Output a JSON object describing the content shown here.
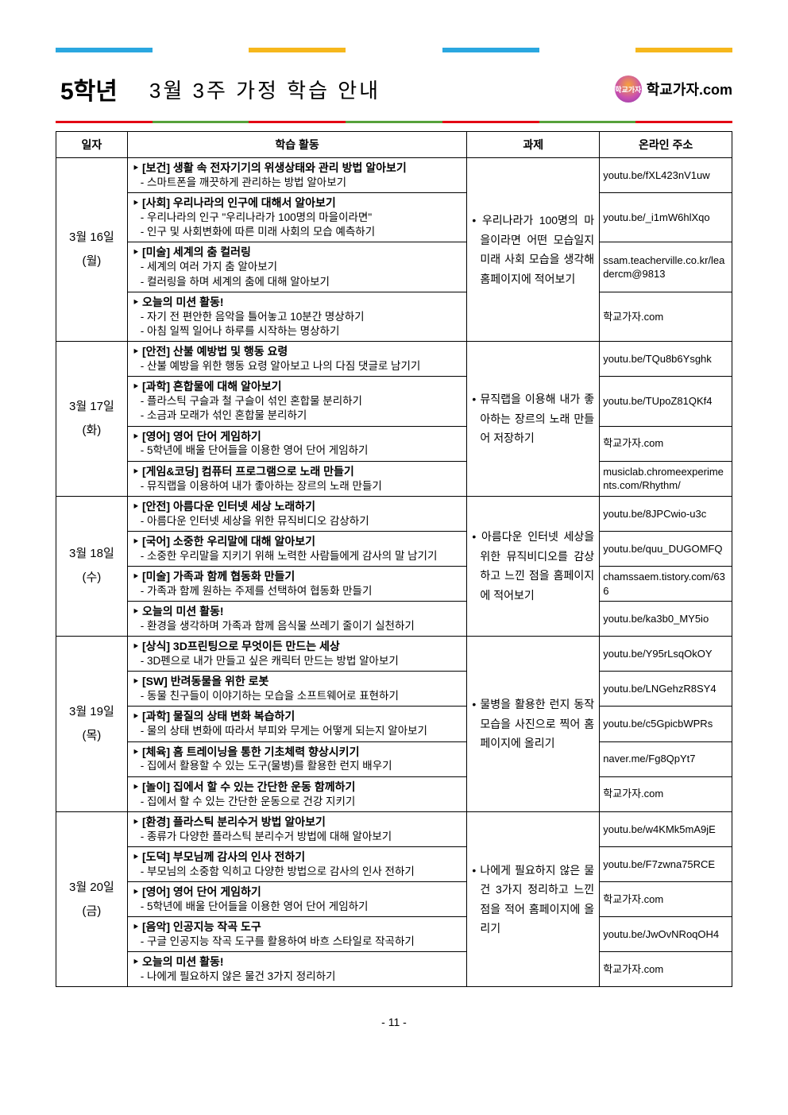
{
  "header": {
    "grade": "5학년",
    "title": "3월 3주 가정 학습 안내",
    "logo_text": "학교가자",
    "site": "학교가자.com",
    "bar1_colors": [
      "#2aa7e0",
      "#ffffff",
      "#f6b71c",
      "#ffffff",
      "#2aa7e0",
      "#ffffff",
      "#f6b71c"
    ],
    "bar2_colors": [
      "#e30613",
      "#56a13a",
      "#e30613",
      "#56a13a",
      "#e30613",
      "#56a13a",
      "#e30613"
    ]
  },
  "columns": {
    "date": "일자",
    "activity": "학습 활동",
    "task": "과제",
    "url": "온라인 주소"
  },
  "days": [
    {
      "date": "3월 16일\n(월)",
      "task": "우리나라가 100명의 마을이라면 어떤 모습일지 미래 사회 모습을 생각해 홈페이지에 적어보기",
      "rows": [
        {
          "title": "[보건] 생활 속 전자기기의 위생상태와 관리 방법 알아보기",
          "subs": [
            "스마트폰을 깨끗하게 관리하는 방법 알아보기"
          ],
          "url": "youtu.be/fXL423nV1uw"
        },
        {
          "title": "[사회] 우리나라의 인구에 대해서 알아보기",
          "subs": [
            "우리나라의 인구 \"우리나라가 100명의 마을이라면\"",
            "인구 및 사회변화에 따른 미래 사회의 모습 예측하기"
          ],
          "url": "youtu.be/_i1mW6hlXqo"
        },
        {
          "title": "[미술] 세계의 춤 컬러링",
          "subs": [
            "세계의 여러 가지 춤 알아보기",
            "컬러링을 하며 세계의 춤에 대해 알아보기"
          ],
          "url": "ssam.teacherville.co.kr/leadercm@9813"
        },
        {
          "title": "오늘의 미션 활동!",
          "subs": [
            "자기 전 편안한 음악을 틀어놓고 10분간 명상하기",
            "아침 일찍 일어나 하루를 시작하는 명상하기"
          ],
          "url": "학교가자.com"
        }
      ]
    },
    {
      "date": "3월 17일\n(화)",
      "task": "뮤직랩을 이용해 내가 좋아하는 장르의 노래 만들어 저장하기",
      "rows": [
        {
          "title": "[안전] 산불 예방법 및 행동 요령",
          "subs": [
            "산불 예방을 위한 행동 요령 알아보고 나의 다짐 댓글로 남기기"
          ],
          "url": "youtu.be/TQu8b6Ysghk"
        },
        {
          "title": "[과학] 혼합물에 대해 알아보기",
          "subs": [
            "플라스틱 구슬과 철 구슬이 섞인 혼합물 분리하기",
            "소금과 모래가 섞인 혼합물 분리하기"
          ],
          "url": "youtu.be/TUpoZ81QKf4"
        },
        {
          "title": "[영어] 영어 단어 게임하기",
          "subs": [
            "5학년에 배울 단어들을 이용한 영어 단어 게임하기"
          ],
          "url": "학교가자.com"
        },
        {
          "title": "[게임&코딩] 컴퓨터 프로그램으로 노래 만들기",
          "subs": [
            "뮤직랩을 이용하여 내가 좋아하는 장르의 노래 만들기"
          ],
          "url": "musiclab.chromeexperiments.com/Rhythm/"
        }
      ]
    },
    {
      "date": "3월 18일\n(수)",
      "task": "아름다운 인터넷 세상을 위한 뮤직비디오를 감상하고 느낀 점을 홈페이지에 적어보기",
      "rows": [
        {
          "title": "[안전] 아름다운 인터넷 세상 노래하기",
          "subs": [
            "아름다운 인터넷 세상을 위한 뮤직비디오 감상하기"
          ],
          "url": "youtu.be/8JPCwio-u3c"
        },
        {
          "title": "[국어] 소중한 우리말에 대해 알아보기",
          "subs": [
            "소중한 우리말을 지키기 위해 노력한 사람들에게 감사의 말 남기기"
          ],
          "url": "youtu.be/quu_DUGOMFQ"
        },
        {
          "title": "[미술] 가족과 함께 협동화 만들기",
          "subs": [
            "가족과 함께 원하는 주제를 선택하여 협동화 만들기"
          ],
          "url": "chamssaem.tistory.com/636"
        },
        {
          "title": "오늘의 미션 활동!",
          "subs": [
            "환경을 생각하며 가족과 함께 음식물 쓰레기 줄이기 실천하기"
          ],
          "url": "youtu.be/ka3b0_MY5io"
        }
      ]
    },
    {
      "date": "3월 19일\n(목)",
      "task": "물병을 활용한 런지 동작모습을 사진으로 찍어 홈페이지에 올리기",
      "rows": [
        {
          "title": "[상식] 3D프린팅으로 무엇이든 만드는 세상",
          "subs": [
            "3D펜으로 내가 만들고 싶은 캐릭터 만드는 방법 알아보기"
          ],
          "url": "youtu.be/Y95rLsqOkOY"
        },
        {
          "title": "[SW] 반려동물을 위한 로봇",
          "subs": [
            "동물 친구들이 이야기하는 모습을 소프트웨어로 표현하기"
          ],
          "url": "youtu.be/LNGehzR8SY4"
        },
        {
          "title": "[과학] 물질의 상태 변화 복습하기",
          "subs": [
            "물의 상태 변화에 따라서 부피와 무게는 어떻게 되는지 알아보기"
          ],
          "url": "youtu.be/c5GpicbWPRs"
        },
        {
          "title": "[체육] 홈 트레이닝을 통한 기초체력 향상시키기",
          "subs": [
            "집에서 활용할 수 있는 도구(물병)를 활용한 런지 배우기"
          ],
          "url": "naver.me/Fg8QpYt7"
        },
        {
          "title": "[놀이] 집에서 할 수 있는 간단한 운동 함께하기",
          "subs": [
            "집에서 할 수 있는 간단한 운동으로 건강 지키기"
          ],
          "url": "학교가자.com"
        }
      ]
    },
    {
      "date": "3월 20일\n(금)",
      "task": "나에게 필요하지 않은 물건 3가지 정리하고 느낀 점을 적어 홈페이지에 올리기",
      "rows": [
        {
          "title": "[환경] 플라스틱 분리수거 방법 알아보기",
          "subs": [
            "종류가 다양한 플라스틱 분리수거 방법에 대해 알아보기"
          ],
          "url": "youtu.be/w4KMk5mA9jE"
        },
        {
          "title": "[도덕] 부모님께 감사의 인사 전하기",
          "subs": [
            "부모님의 소중함 익히고 다양한 방법으로 감사의 인사 전하기"
          ],
          "url": "youtu.be/F7zwna75RCE"
        },
        {
          "title": "[영어] 영어 단어 게임하기",
          "subs": [
            "5학년에 배울 단어들을 이용한 영어 단어 게임하기"
          ],
          "url": "학교가자.com"
        },
        {
          "title": "[음악] 인공지능 작곡 도구",
          "subs": [
            "구글 인공지능 작곡 도구를 활용하여 바흐 스타일로 작곡하기"
          ],
          "url": "youtu.be/JwOvNRoqOH4"
        },
        {
          "title": "오늘의 미션 활동!",
          "subs": [
            "나에게 필요하지 않은 물건 3가지 정리하기"
          ],
          "url": "학교가자.com"
        }
      ]
    }
  ],
  "page_number": "- 11 -"
}
